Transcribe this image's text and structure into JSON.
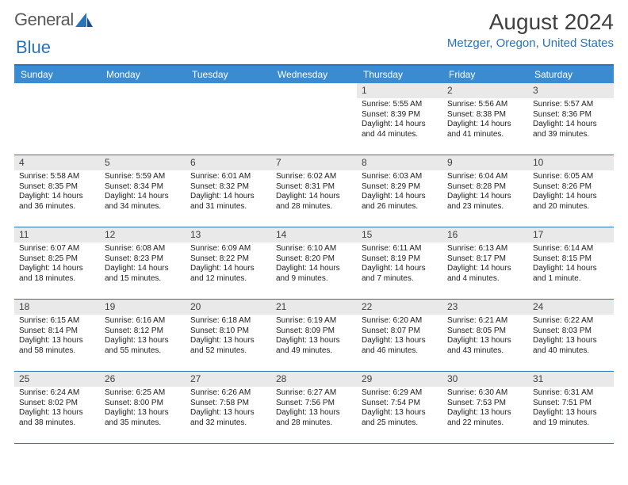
{
  "logo": {
    "word1": "General",
    "word2": "Blue"
  },
  "title": "August 2024",
  "location": "Metzger, Oregon, United States",
  "colors": {
    "header_bg": "#3b8bd0",
    "accent": "#2a73b8",
    "daynum_bg": "#e9e9e9",
    "text": "#202020",
    "logo_gray": "#5a5a5a"
  },
  "day_labels": [
    "Sunday",
    "Monday",
    "Tuesday",
    "Wednesday",
    "Thursday",
    "Friday",
    "Saturday"
  ],
  "weeks": [
    [
      null,
      null,
      null,
      null,
      {
        "n": "1",
        "sr": "Sunrise: 5:55 AM",
        "ss": "Sunset: 8:39 PM",
        "d1": "Daylight: 14 hours",
        "d2": "and 44 minutes."
      },
      {
        "n": "2",
        "sr": "Sunrise: 5:56 AM",
        "ss": "Sunset: 8:38 PM",
        "d1": "Daylight: 14 hours",
        "d2": "and 41 minutes."
      },
      {
        "n": "3",
        "sr": "Sunrise: 5:57 AM",
        "ss": "Sunset: 8:36 PM",
        "d1": "Daylight: 14 hours",
        "d2": "and 39 minutes."
      }
    ],
    [
      {
        "n": "4",
        "sr": "Sunrise: 5:58 AM",
        "ss": "Sunset: 8:35 PM",
        "d1": "Daylight: 14 hours",
        "d2": "and 36 minutes."
      },
      {
        "n": "5",
        "sr": "Sunrise: 5:59 AM",
        "ss": "Sunset: 8:34 PM",
        "d1": "Daylight: 14 hours",
        "d2": "and 34 minutes."
      },
      {
        "n": "6",
        "sr": "Sunrise: 6:01 AM",
        "ss": "Sunset: 8:32 PM",
        "d1": "Daylight: 14 hours",
        "d2": "and 31 minutes."
      },
      {
        "n": "7",
        "sr": "Sunrise: 6:02 AM",
        "ss": "Sunset: 8:31 PM",
        "d1": "Daylight: 14 hours",
        "d2": "and 28 minutes."
      },
      {
        "n": "8",
        "sr": "Sunrise: 6:03 AM",
        "ss": "Sunset: 8:29 PM",
        "d1": "Daylight: 14 hours",
        "d2": "and 26 minutes."
      },
      {
        "n": "9",
        "sr": "Sunrise: 6:04 AM",
        "ss": "Sunset: 8:28 PM",
        "d1": "Daylight: 14 hours",
        "d2": "and 23 minutes."
      },
      {
        "n": "10",
        "sr": "Sunrise: 6:05 AM",
        "ss": "Sunset: 8:26 PM",
        "d1": "Daylight: 14 hours",
        "d2": "and 20 minutes."
      }
    ],
    [
      {
        "n": "11",
        "sr": "Sunrise: 6:07 AM",
        "ss": "Sunset: 8:25 PM",
        "d1": "Daylight: 14 hours",
        "d2": "and 18 minutes."
      },
      {
        "n": "12",
        "sr": "Sunrise: 6:08 AM",
        "ss": "Sunset: 8:23 PM",
        "d1": "Daylight: 14 hours",
        "d2": "and 15 minutes."
      },
      {
        "n": "13",
        "sr": "Sunrise: 6:09 AM",
        "ss": "Sunset: 8:22 PM",
        "d1": "Daylight: 14 hours",
        "d2": "and 12 minutes."
      },
      {
        "n": "14",
        "sr": "Sunrise: 6:10 AM",
        "ss": "Sunset: 8:20 PM",
        "d1": "Daylight: 14 hours",
        "d2": "and 9 minutes."
      },
      {
        "n": "15",
        "sr": "Sunrise: 6:11 AM",
        "ss": "Sunset: 8:19 PM",
        "d1": "Daylight: 14 hours",
        "d2": "and 7 minutes."
      },
      {
        "n": "16",
        "sr": "Sunrise: 6:13 AM",
        "ss": "Sunset: 8:17 PM",
        "d1": "Daylight: 14 hours",
        "d2": "and 4 minutes."
      },
      {
        "n": "17",
        "sr": "Sunrise: 6:14 AM",
        "ss": "Sunset: 8:15 PM",
        "d1": "Daylight: 14 hours",
        "d2": "and 1 minute."
      }
    ],
    [
      {
        "n": "18",
        "sr": "Sunrise: 6:15 AM",
        "ss": "Sunset: 8:14 PM",
        "d1": "Daylight: 13 hours",
        "d2": "and 58 minutes."
      },
      {
        "n": "19",
        "sr": "Sunrise: 6:16 AM",
        "ss": "Sunset: 8:12 PM",
        "d1": "Daylight: 13 hours",
        "d2": "and 55 minutes."
      },
      {
        "n": "20",
        "sr": "Sunrise: 6:18 AM",
        "ss": "Sunset: 8:10 PM",
        "d1": "Daylight: 13 hours",
        "d2": "and 52 minutes."
      },
      {
        "n": "21",
        "sr": "Sunrise: 6:19 AM",
        "ss": "Sunset: 8:09 PM",
        "d1": "Daylight: 13 hours",
        "d2": "and 49 minutes."
      },
      {
        "n": "22",
        "sr": "Sunrise: 6:20 AM",
        "ss": "Sunset: 8:07 PM",
        "d1": "Daylight: 13 hours",
        "d2": "and 46 minutes."
      },
      {
        "n": "23",
        "sr": "Sunrise: 6:21 AM",
        "ss": "Sunset: 8:05 PM",
        "d1": "Daylight: 13 hours",
        "d2": "and 43 minutes."
      },
      {
        "n": "24",
        "sr": "Sunrise: 6:22 AM",
        "ss": "Sunset: 8:03 PM",
        "d1": "Daylight: 13 hours",
        "d2": "and 40 minutes."
      }
    ],
    [
      {
        "n": "25",
        "sr": "Sunrise: 6:24 AM",
        "ss": "Sunset: 8:02 PM",
        "d1": "Daylight: 13 hours",
        "d2": "and 38 minutes."
      },
      {
        "n": "26",
        "sr": "Sunrise: 6:25 AM",
        "ss": "Sunset: 8:00 PM",
        "d1": "Daylight: 13 hours",
        "d2": "and 35 minutes."
      },
      {
        "n": "27",
        "sr": "Sunrise: 6:26 AM",
        "ss": "Sunset: 7:58 PM",
        "d1": "Daylight: 13 hours",
        "d2": "and 32 minutes."
      },
      {
        "n": "28",
        "sr": "Sunrise: 6:27 AM",
        "ss": "Sunset: 7:56 PM",
        "d1": "Daylight: 13 hours",
        "d2": "and 28 minutes."
      },
      {
        "n": "29",
        "sr": "Sunrise: 6:29 AM",
        "ss": "Sunset: 7:54 PM",
        "d1": "Daylight: 13 hours",
        "d2": "and 25 minutes."
      },
      {
        "n": "30",
        "sr": "Sunrise: 6:30 AM",
        "ss": "Sunset: 7:53 PM",
        "d1": "Daylight: 13 hours",
        "d2": "and 22 minutes."
      },
      {
        "n": "31",
        "sr": "Sunrise: 6:31 AM",
        "ss": "Sunset: 7:51 PM",
        "d1": "Daylight: 13 hours",
        "d2": "and 19 minutes."
      }
    ]
  ]
}
